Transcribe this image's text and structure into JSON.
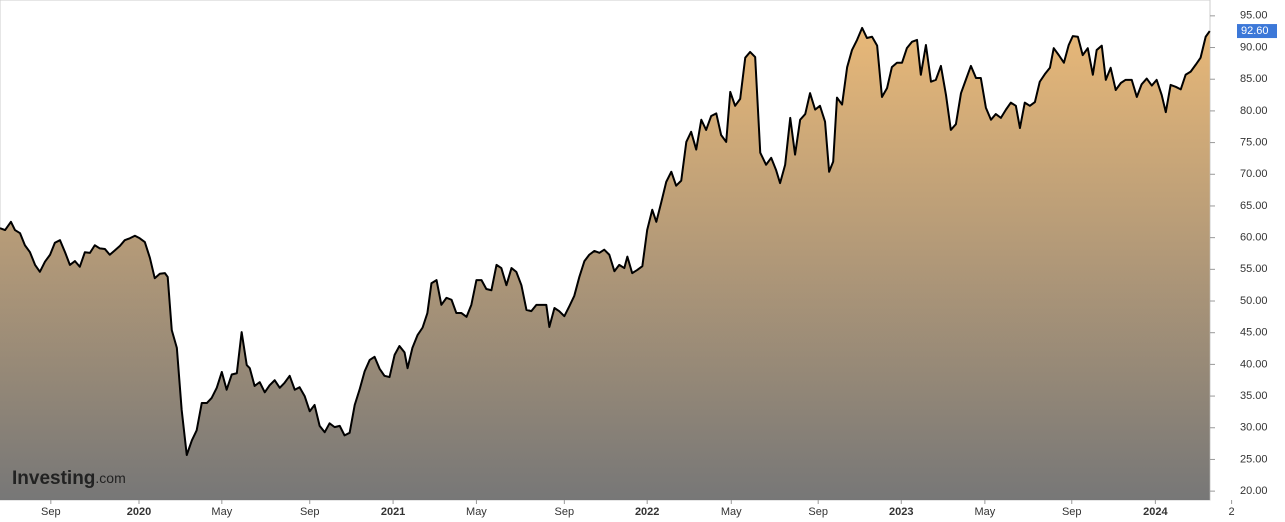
{
  "chart_data": {
    "type": "area",
    "watermark": {
      "brand": "Investing",
      "suffix": ".com"
    },
    "xlim": [
      2019.453,
      2024.215
    ],
    "ylim": [
      18.6,
      97.5
    ],
    "xticks": [
      {
        "value": 2019.653,
        "label": "Sep"
      },
      2020,
      {
        "value": 2020.326,
        "label": "May"
      },
      {
        "value": 2020.672,
        "label": "Sep"
      },
      2021,
      {
        "value": 2021.328,
        "label": "May"
      },
      {
        "value": 2021.674,
        "label": "Sep"
      },
      2022,
      {
        "value": 2022.331,
        "label": "May"
      },
      {
        "value": 2022.673,
        "label": "Sep"
      },
      2023,
      {
        "value": 2023.329,
        "label": "May"
      },
      {
        "value": 2023.671,
        "label": "Sep"
      },
      2024,
      {
        "value": 2024.3,
        "label": "2"
      }
    ],
    "yticks": [
      {
        "value": 20,
        "label": "20.00"
      },
      {
        "value": 25,
        "label": "25.00"
      },
      {
        "value": 30,
        "label": "30.00"
      },
      {
        "value": 35,
        "label": "35.00"
      },
      {
        "value": 40,
        "label": "40.00"
      },
      {
        "value": 45,
        "label": "45.00"
      },
      {
        "value": 50,
        "label": "50.00"
      },
      {
        "value": 55,
        "label": "55.00"
      },
      {
        "value": 60,
        "label": "60.00"
      },
      {
        "value": 65,
        "label": "65.00"
      },
      {
        "value": 70,
        "label": "70.00"
      },
      {
        "value": 75,
        "label": "75.00"
      },
      {
        "value": 80,
        "label": "80.00"
      },
      {
        "value": 85,
        "label": "85.00"
      },
      {
        "value": 90,
        "label": "90.00"
      },
      {
        "value": 95,
        "label": "95.00"
      }
    ],
    "grid": false,
    "line_color": "#000000",
    "fill_top": "#e8b878",
    "fill_bottom": "#777777",
    "last_label": {
      "value": 92.6,
      "label": "92.60",
      "color": "#3c78d8"
    },
    "x": [
      2019.453,
      2019.473,
      2019.496,
      2019.512,
      2019.532,
      2019.551,
      2019.571,
      2019.591,
      2019.61,
      2019.63,
      2019.65,
      2019.669,
      2019.689,
      2019.709,
      2019.728,
      2019.748,
      2019.767,
      2019.787,
      2019.807,
      2019.826,
      2019.846,
      2019.866,
      2019.885,
      2019.905,
      2019.925,
      2019.944,
      2019.964,
      2019.984,
      2020.003,
      2020.023,
      2020.043,
      2020.062,
      2020.082,
      2020.102,
      2020.113,
      2020.129,
      2020.149,
      2020.168,
      2020.188,
      2020.208,
      2020.227,
      2020.247,
      2020.267,
      2020.286,
      2020.306,
      2020.326,
      2020.345,
      2020.365,
      2020.385,
      2020.404,
      2020.424,
      2020.436,
      2020.455,
      2020.475,
      2020.495,
      2020.514,
      2020.534,
      2020.554,
      2020.573,
      2020.593,
      2020.613,
      2020.632,
      2020.652,
      2020.672,
      2020.691,
      2020.711,
      2020.731,
      2020.75,
      2020.77,
      2020.79,
      2020.809,
      2020.829,
      2020.849,
      2020.868,
      2020.888,
      2020.908,
      2020.927,
      2020.947,
      2020.966,
      2020.986,
      2021.006,
      2021.025,
      2021.045,
      2021.057,
      2021.076,
      2021.096,
      2021.116,
      2021.135,
      2021.151,
      2021.171,
      2021.19,
      2021.21,
      2021.23,
      2021.249,
      2021.269,
      2021.289,
      2021.308,
      2021.328,
      2021.348,
      2021.367,
      2021.387,
      2021.407,
      2021.426,
      2021.446,
      2021.466,
      2021.485,
      2021.505,
      2021.525,
      2021.544,
      2021.564,
      2021.584,
      2021.603,
      2021.615,
      2021.635,
      2021.654,
      2021.674,
      2021.694,
      2021.713,
      2021.733,
      2021.753,
      2021.772,
      2021.792,
      2021.812,
      2021.831,
      2021.851,
      2021.871,
      2021.89,
      2021.91,
      2021.922,
      2021.941,
      2021.961,
      2021.981,
      2022.0,
      2022.02,
      2022.036,
      2022.055,
      2022.075,
      2022.095,
      2022.114,
      2022.134,
      2022.154,
      2022.173,
      2022.193,
      2022.213,
      2022.232,
      2022.252,
      2022.272,
      2022.291,
      2022.311,
      2022.327,
      2022.346,
      2022.366,
      2022.386,
      2022.405,
      2022.425,
      2022.445,
      2022.468,
      2022.488,
      2022.507,
      2022.523,
      2022.543,
      2022.563,
      2022.582,
      2022.602,
      2022.622,
      2022.641,
      2022.661,
      2022.68,
      2022.7,
      2022.716,
      2022.732,
      2022.747,
      2022.767,
      2022.787,
      2022.806,
      2022.826,
      2022.846,
      2022.865,
      2022.885,
      2022.905,
      2022.924,
      2022.944,
      2022.963,
      2022.983,
      2023.003,
      2023.022,
      2023.042,
      2023.062,
      2023.077,
      2023.097,
      2023.117,
      2023.136,
      2023.156,
      2023.176,
      2023.195,
      2023.215,
      2023.235,
      2023.254,
      2023.274,
      2023.294,
      2023.313,
      2023.333,
      2023.353,
      2023.372,
      2023.392,
      2023.412,
      2023.431,
      2023.451,
      2023.467,
      2023.486,
      2023.506,
      2023.526,
      2023.545,
      2023.565,
      2023.585,
      2023.6,
      2023.62,
      2023.64,
      2023.659,
      2023.675,
      2023.695,
      2023.714,
      2023.734,
      2023.754,
      2023.769,
      2023.789,
      2023.805,
      2023.824,
      2023.844,
      2023.864,
      2023.883,
      2023.907,
      2023.927,
      2023.946,
      2023.966,
      2023.986,
      2024.005,
      2024.025,
      2024.041,
      2024.06,
      2024.08,
      2024.1,
      2024.119,
      2024.139,
      2024.159,
      2024.178,
      2024.198,
      2024.214
    ],
    "values": [
      61.5,
      61.2,
      62.5,
      61.2,
      60.7,
      58.8,
      57.7,
      55.7,
      54.6,
      56.2,
      57.3,
      59.2,
      59.6,
      57.7,
      55.7,
      56.3,
      55.4,
      57.7,
      57.6,
      58.8,
      58.3,
      58.2,
      57.3,
      58.0,
      58.7,
      59.6,
      59.9,
      60.3,
      59.9,
      59.3,
      56.8,
      53.6,
      54.3,
      54.4,
      53.8,
      45.4,
      42.6,
      32.8,
      25.7,
      28.0,
      29.6,
      33.9,
      33.9,
      34.7,
      36.3,
      38.8,
      36.0,
      38.4,
      38.6,
      45.1,
      39.9,
      39.4,
      36.6,
      37.2,
      35.6,
      36.7,
      37.5,
      36.3,
      37.1,
      38.2,
      36.0,
      36.4,
      35.0,
      32.6,
      33.6,
      30.3,
      29.3,
      30.7,
      30.1,
      30.3,
      28.8,
      29.2,
      33.6,
      36.0,
      38.9,
      40.7,
      41.2,
      39.3,
      38.2,
      38.0,
      41.5,
      42.9,
      41.9,
      39.4,
      42.6,
      44.6,
      45.8,
      48.1,
      52.8,
      53.3,
      49.4,
      50.5,
      50.2,
      48.1,
      48.1,
      47.5,
      49.4,
      53.3,
      53.3,
      51.9,
      51.7,
      55.7,
      55.2,
      52.5,
      55.2,
      54.6,
      52.5,
      48.6,
      48.4,
      49.4,
      49.4,
      49.4,
      45.9,
      48.9,
      48.4,
      47.6,
      49.2,
      50.8,
      53.8,
      56.3,
      57.3,
      57.9,
      57.6,
      58.1,
      57.3,
      54.7,
      55.7,
      55.2,
      57.0,
      54.4,
      54.9,
      55.5,
      61.2,
      64.4,
      62.5,
      65.5,
      68.8,
      70.4,
      68.2,
      69.0,
      75.1,
      76.7,
      73.9,
      78.6,
      77.0,
      79.2,
      79.6,
      76.2,
      75.1,
      83.0,
      80.8,
      81.9,
      88.4,
      89.3,
      88.5,
      73.4,
      71.5,
      72.6,
      70.7,
      68.6,
      71.5,
      78.9,
      73.1,
      78.6,
      79.5,
      82.8,
      80.2,
      80.8,
      78.3,
      70.4,
      72.0,
      82.1,
      81.0,
      86.9,
      89.6,
      91.2,
      93.1,
      91.5,
      91.7,
      90.3,
      82.2,
      83.6,
      86.9,
      87.6,
      87.6,
      89.9,
      90.9,
      91.2,
      85.7,
      90.4,
      84.6,
      84.9,
      87.1,
      82.5,
      77.0,
      77.9,
      82.8,
      84.9,
      87.1,
      85.2,
      85.2,
      80.5,
      78.6,
      79.5,
      78.9,
      80.2,
      81.3,
      80.8,
      77.3,
      81.3,
      80.8,
      81.4,
      84.6,
      85.8,
      86.8,
      89.9,
      88.8,
      87.6,
      90.4,
      91.8,
      91.7,
      88.8,
      89.9,
      85.7,
      89.6,
      90.3,
      84.9,
      86.8,
      83.3,
      84.4,
      84.9,
      84.9,
      82.2,
      84.2,
      85.1,
      84.0,
      84.9,
      82.5,
      79.8,
      84.1,
      83.8,
      83.4,
      85.7,
      86.2,
      87.3,
      88.4,
      91.7,
      92.6
    ]
  }
}
